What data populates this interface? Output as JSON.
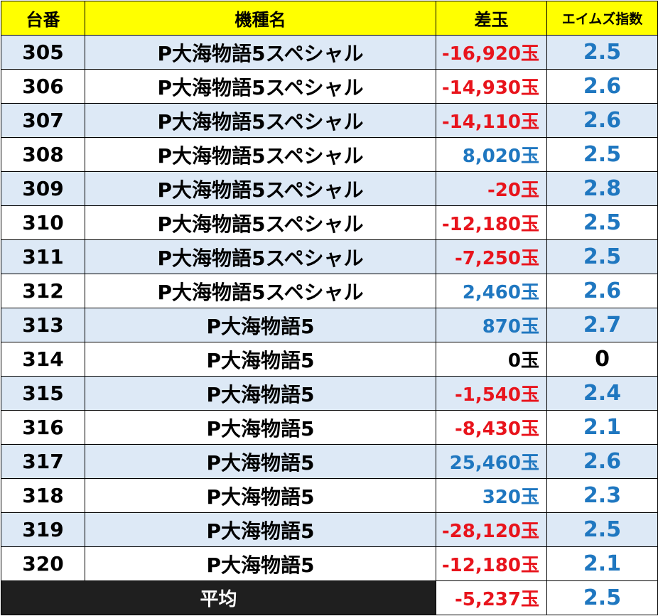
{
  "header": {
    "no_label": "台番",
    "model_label": "機種名",
    "diff_label": "差玉",
    "index_label": "エイムズ指数"
  },
  "colors": {
    "header_bg": "#ffff00",
    "shaded_row_bg": "#dde9f6",
    "negative": "#e8141c",
    "positive": "#1f77c0",
    "index": "#1f77c0",
    "average_label_bg": "#1f1f1f"
  },
  "rows": [
    {
      "no": "305",
      "model": "P大海物語5スペシャル",
      "diff": "-16,920玉",
      "index": "2.5"
    },
    {
      "no": "306",
      "model": "P大海物語5スペシャル",
      "diff": "-14,930玉",
      "index": "2.6"
    },
    {
      "no": "307",
      "model": "P大海物語5スペシャル",
      "diff": "-14,110玉",
      "index": "2.6"
    },
    {
      "no": "308",
      "model": "P大海物語5スペシャル",
      "diff": "8,020玉",
      "index": "2.5"
    },
    {
      "no": "309",
      "model": "P大海物語5スペシャル",
      "diff": "-20玉",
      "index": "2.8"
    },
    {
      "no": "310",
      "model": "P大海物語5スペシャル",
      "diff": "-12,180玉",
      "index": "2.5"
    },
    {
      "no": "311",
      "model": "P大海物語5スペシャル",
      "diff": "-7,250玉",
      "index": "2.5"
    },
    {
      "no": "312",
      "model": "P大海物語5スペシャル",
      "diff": "2,460玉",
      "index": "2.6"
    },
    {
      "no": "313",
      "model": "P大海物語5",
      "diff": "870玉",
      "index": "2.7"
    },
    {
      "no": "314",
      "model": "P大海物語5",
      "diff": "0玉",
      "index": "0"
    },
    {
      "no": "315",
      "model": "P大海物語5",
      "diff": "-1,540玉",
      "index": "2.4"
    },
    {
      "no": "316",
      "model": "P大海物語5",
      "diff": "-8,430玉",
      "index": "2.1"
    },
    {
      "no": "317",
      "model": "P大海物語5",
      "diff": "25,460玉",
      "index": "2.6"
    },
    {
      "no": "318",
      "model": "P大海物語5",
      "diff": "320玉",
      "index": "2.3"
    },
    {
      "no": "319",
      "model": "P大海物語5",
      "diff": "-28,120玉",
      "index": "2.5"
    },
    {
      "no": "320",
      "model": "P大海物語5",
      "diff": "-12,180玉",
      "index": "2.1"
    }
  ],
  "average": {
    "label": "平均",
    "diff": "-5,237玉",
    "index": "2.5"
  }
}
